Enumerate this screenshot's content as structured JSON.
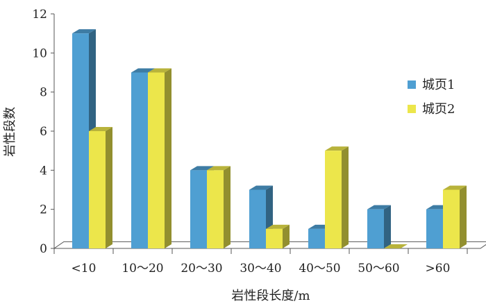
{
  "chart_data": {
    "type": "bar",
    "style": "3d-clustered",
    "title": "",
    "xlabel": "岩性段长度/m",
    "ylabel": "岩性段数",
    "ylim": [
      0,
      12
    ],
    "yticks": [
      0,
      2,
      4,
      6,
      8,
      10,
      12
    ],
    "grid": false,
    "legend_position": "right",
    "categories": [
      "<10",
      "10～20",
      "20～30",
      "30～40",
      "40～50",
      "50～60",
      ">60"
    ],
    "series": [
      {
        "name": "城页1",
        "color": "#4f9fd2",
        "values": [
          11,
          9,
          4,
          3,
          1,
          2,
          2
        ]
      },
      {
        "name": "城页2",
        "color": "#ece64b",
        "values": [
          6,
          9,
          4,
          1,
          5,
          0,
          3
        ]
      }
    ]
  }
}
